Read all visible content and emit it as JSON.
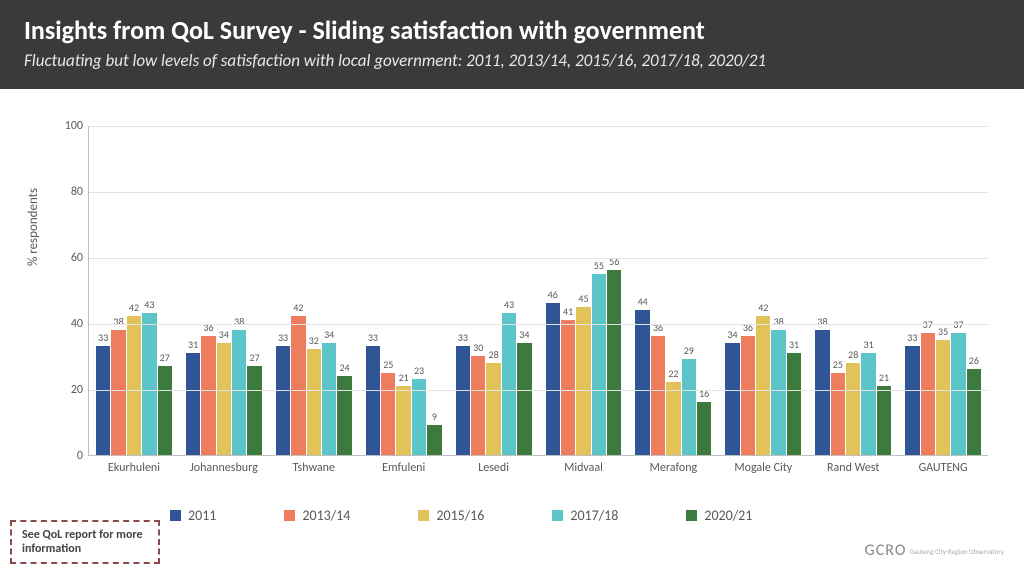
{
  "header": {
    "title": "Insights from QoL Survey - Sliding satisfaction with government",
    "subtitle": "Fluctuating but low levels of satisfaction with local government: 2011, 2013/14, 2015/16, 2017/18, 2020/21"
  },
  "chart": {
    "type": "bar",
    "ylabel": "% respondents",
    "ylim": [
      0,
      100
    ],
    "ytick_step": 20,
    "series": [
      {
        "label": "2011",
        "color": "#2f5597"
      },
      {
        "label": "2013/14",
        "color": "#ed7d5d"
      },
      {
        "label": "2015/16",
        "color": "#e2c35a"
      },
      {
        "label": "2017/18",
        "color": "#5bc5c9"
      },
      {
        "label": "2020/21",
        "color": "#3d7a3d"
      }
    ],
    "categories": [
      "Ekurhuleni",
      "Johannesburg",
      "Tshwane",
      "Emfuleni",
      "Lesedi",
      "Midvaal",
      "Merafong",
      "Mogale City",
      "Rand West",
      "GAUTENG"
    ],
    "values": [
      [
        33,
        38,
        42,
        43,
        27
      ],
      [
        31,
        36,
        34,
        38,
        27
      ],
      [
        33,
        42,
        32,
        34,
        24
      ],
      [
        33,
        25,
        21,
        23,
        9
      ],
      [
        33,
        30,
        28,
        43,
        34
      ],
      [
        46,
        41,
        45,
        55,
        56
      ],
      [
        44,
        36,
        22,
        29,
        16
      ],
      [
        34,
        36,
        42,
        38,
        31
      ],
      [
        38,
        25,
        28,
        31,
        21
      ],
      [
        33,
        37,
        35,
        37,
        26
      ]
    ],
    "grid_color": "#e3e3e3",
    "axis_color": "#bfbfbf",
    "label_fontsize": 12
  },
  "note": "See QoL report for more information",
  "logo": {
    "main": "GCRO",
    "sub": "Gauteng City-Region Observatory"
  }
}
